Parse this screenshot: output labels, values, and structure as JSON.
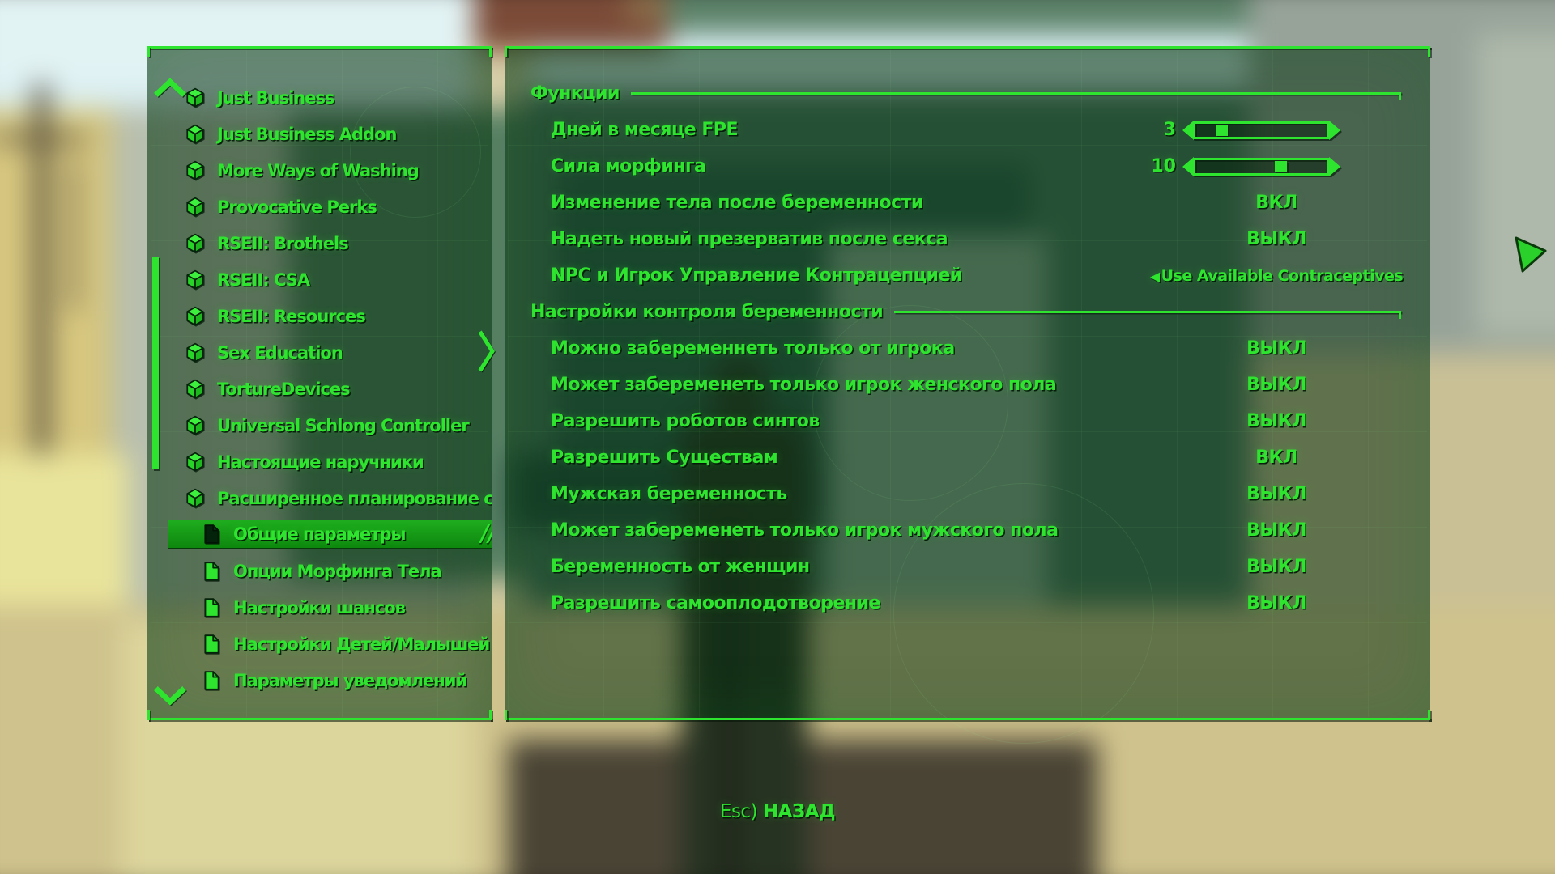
{
  "colors": {
    "accent": "#2fe42f",
    "highlight_bg": "#1fae1f",
    "panel_tint": "#0a3212",
    "selected_icon": "#04230b"
  },
  "sidebar": {
    "scroll_up_icon": "chevron-up",
    "scroll_down_icon": "chevron-down",
    "next_page_icon": "chevron-right",
    "items": [
      {
        "label": "Just Business",
        "icon": "cube",
        "selected": false
      },
      {
        "label": "Just Business Addon",
        "icon": "cube",
        "selected": false
      },
      {
        "label": "More Ways of Washing",
        "icon": "cube",
        "selected": false
      },
      {
        "label": "Provocative Perks",
        "icon": "cube",
        "selected": false
      },
      {
        "label": "RSEII: Brothels",
        "icon": "cube",
        "selected": false
      },
      {
        "label": "RSEII: CSA",
        "icon": "cube",
        "selected": false
      },
      {
        "label": "RSEII: Resources",
        "icon": "cube",
        "selected": false
      },
      {
        "label": "Sex Education",
        "icon": "cube",
        "selected": false
      },
      {
        "label": "TortureDevices",
        "icon": "cube",
        "selected": false
      },
      {
        "label": "Universal Schlong Controller",
        "icon": "cube",
        "selected": false
      },
      {
        "label": "Настоящие наручники",
        "icon": "cube",
        "selected": false
      },
      {
        "label": "Расширенное планирование семьи",
        "icon": "cube",
        "selected": false
      },
      {
        "label": "Общие параметры",
        "icon": "page",
        "selected": true
      },
      {
        "label": "Опции Морфинга Тела",
        "icon": "page",
        "selected": false
      },
      {
        "label": "Настройки шансов",
        "icon": "page",
        "selected": false
      },
      {
        "label": "Настройки Детей/Малышей",
        "icon": "page",
        "selected": false
      },
      {
        "label": "Параметры уведомлений",
        "icon": "page",
        "selected": false
      }
    ]
  },
  "settings": {
    "sections": [
      {
        "title": "Функции",
        "rows": [
          {
            "type": "slider",
            "label": "Дней в месяце FPE",
            "value": "3",
            "thumb_pct": 8
          },
          {
            "type": "slider",
            "label": "Сила морфинга",
            "value": "10",
            "thumb_pct": 55
          },
          {
            "type": "toggle",
            "label": "Изменение тела после беременности",
            "value": "ВКЛ"
          },
          {
            "type": "toggle",
            "label": "Надеть новый презерватив после секса",
            "value": "ВЫКЛ"
          },
          {
            "type": "select",
            "label": "NPC и Игрок Управление Контрацепцией",
            "marker": "◀",
            "value": "Use Available Contraceptives"
          }
        ]
      },
      {
        "title": "Настройки контроля беременности",
        "rows": [
          {
            "type": "toggle",
            "label": "Можно забеременнеть только от игрока",
            "value": "ВЫКЛ"
          },
          {
            "type": "toggle",
            "label": "Может забеременеть только игрок женского пола",
            "value": "ВЫКЛ"
          },
          {
            "type": "toggle",
            "label": "Разрешить роботов синтов",
            "value": "ВЫКЛ"
          },
          {
            "type": "toggle",
            "label": "Разрешить Существам",
            "value": "ВКЛ"
          },
          {
            "type": "toggle",
            "label": "Мужская беременность",
            "value": "ВЫКЛ"
          },
          {
            "type": "toggle",
            "label": "Может забеременеть только игрок мужского пола",
            "value": "ВЫКЛ"
          },
          {
            "type": "toggle",
            "label": "Беременность от женщин",
            "value": "ВЫКЛ"
          },
          {
            "type": "toggle",
            "label": "Разрешить самооплодотворение",
            "value": "ВЫКЛ"
          }
        ]
      }
    ]
  },
  "footer": {
    "key": "Esc)",
    "action": "НАЗАД"
  },
  "cursor": {
    "icon": "cursor-arrow",
    "color": "#2bd12b"
  }
}
